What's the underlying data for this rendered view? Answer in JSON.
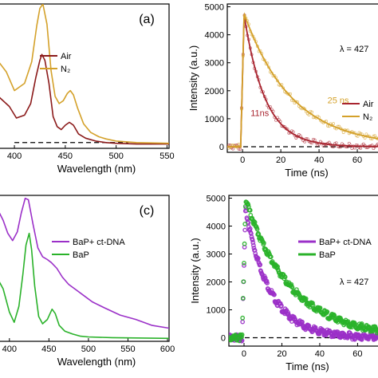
{
  "chart_data": [
    {
      "panel": "(a)",
      "type": "line",
      "xlabel": "Wavelength (nm)",
      "ylabel": "",
      "xlim": [
        378,
        552
      ],
      "ylim": [
        0,
        1.0
      ],
      "x_ticks": [
        "400",
        "450",
        "500",
        "550"
      ],
      "legend": {
        "position": "top-center",
        "entries": [
          "Air",
          "N₂"
        ]
      },
      "reference_line": {
        "style": "dashed",
        "y": 0.04,
        "x_range": [
          400,
          512
        ]
      },
      "series": [
        {
          "name": "Air",
          "color": "#8b1a1a",
          "points": [
            [
              378,
              0.4
            ],
            [
              395,
              0.29
            ],
            [
              402,
              0.21
            ],
            [
              410,
              0.23
            ],
            [
              416,
              0.31
            ],
            [
              421,
              0.49
            ],
            [
              425,
              0.61
            ],
            [
              427,
              0.65
            ],
            [
              430,
              0.61
            ],
            [
              434,
              0.45
            ],
            [
              438,
              0.22
            ],
            [
              442,
              0.15
            ],
            [
              446,
              0.13
            ],
            [
              450,
              0.16
            ],
            [
              454,
              0.18
            ],
            [
              458,
              0.16
            ],
            [
              463,
              0.1
            ],
            [
              470,
              0.07
            ],
            [
              480,
              0.05
            ],
            [
              490,
              0.04
            ],
            [
              500,
              0.035
            ],
            [
              520,
              0.03
            ],
            [
              552,
              0.03
            ]
          ]
        },
        {
          "name": "N₂",
          "color": "#d4a12a",
          "points": [
            [
              378,
              0.66
            ],
            [
              392,
              0.53
            ],
            [
              400,
              0.4
            ],
            [
              410,
              0.45
            ],
            [
              417,
              0.6
            ],
            [
              422,
              0.85
            ],
            [
              425,
              0.97
            ],
            [
              428,
              1.0
            ],
            [
              432,
              0.86
            ],
            [
              436,
              0.54
            ],
            [
              440,
              0.36
            ],
            [
              444,
              0.31
            ],
            [
              448,
              0.33
            ],
            [
              452,
              0.38
            ],
            [
              455,
              0.4
            ],
            [
              458,
              0.37
            ],
            [
              462,
              0.28
            ],
            [
              468,
              0.17
            ],
            [
              475,
              0.11
            ],
            [
              483,
              0.08
            ],
            [
              490,
              0.065
            ],
            [
              500,
              0.05
            ],
            [
              520,
              0.04
            ],
            [
              552,
              0.035
            ]
          ]
        }
      ]
    },
    {
      "type": "scatter",
      "panel": "",
      "xlabel": "Time (ns)",
      "ylabel": "Intensity (a.u.)",
      "xlim": [
        -8,
        75
      ],
      "ylim": [
        -200,
        5100
      ],
      "x_ticks": [
        "0",
        "20",
        "40",
        "60"
      ],
      "y_ticks": [
        "0",
        "1000",
        "2000",
        "3000",
        "4000",
        "5000"
      ],
      "annotation": "λ = 427",
      "legend": {
        "position": "right",
        "entries": [
          "Air",
          "N₂"
        ]
      },
      "lifetime_labels": [
        {
          "series": "Air",
          "text": "11ns",
          "at": [
            9,
            1100
          ]
        },
        {
          "series": "N₂",
          "text": "25 ns",
          "at": [
            50,
            1550
          ]
        }
      ],
      "decay": {
        "onset_ns": -1,
        "peak_ns": 0.8
      },
      "series": [
        {
          "name": "Air",
          "color": "#a8242f",
          "peak": 4700,
          "tau_ns": 11
        },
        {
          "name": "N₂",
          "color": "#d4a12a",
          "peak": 4750,
          "tau_ns": 25
        }
      ],
      "baseline": {
        "style": "dashed",
        "y": 0
      }
    },
    {
      "panel": "(c)",
      "type": "line",
      "xlabel": "Wavelength (nm)",
      "ylabel": "",
      "xlim": [
        378,
        602
      ],
      "ylim": [
        0,
        1.0
      ],
      "x_ticks": [
        "400",
        "450",
        "500",
        "550",
        "600"
      ],
      "legend": {
        "position": "right",
        "entries": [
          "BaP+ ct-DNA",
          "BaP"
        ]
      },
      "series": [
        {
          "name": "BaP+ ct-DNA",
          "color": "#9b30c8",
          "points": [
            [
              378,
              0.98
            ],
            [
              392,
              0.83
            ],
            [
              398,
              0.74
            ],
            [
              404,
              0.69
            ],
            [
              410,
              0.75
            ],
            [
              415,
              0.88
            ],
            [
              420,
              0.98
            ],
            [
              424,
              0.97
            ],
            [
              430,
              0.8
            ],
            [
              436,
              0.64
            ],
            [
              442,
              0.58
            ],
            [
              448,
              0.56
            ],
            [
              453,
              0.54
            ],
            [
              460,
              0.5
            ],
            [
              467,
              0.44
            ],
            [
              475,
              0.39
            ],
            [
              485,
              0.35
            ],
            [
              495,
              0.31
            ],
            [
              505,
              0.27
            ],
            [
              520,
              0.23
            ],
            [
              540,
              0.18
            ],
            [
              560,
              0.15
            ],
            [
              580,
              0.11
            ],
            [
              602,
              0.09
            ]
          ]
        },
        {
          "name": "BaP",
          "color": "#2ab22a",
          "points": [
            [
              378,
              0.5
            ],
            [
              392,
              0.36
            ],
            [
              400,
              0.2
            ],
            [
              406,
              0.13
            ],
            [
              412,
              0.24
            ],
            [
              417,
              0.46
            ],
            [
              421,
              0.66
            ],
            [
              425,
              0.74
            ],
            [
              428,
              0.63
            ],
            [
              432,
              0.38
            ],
            [
              437,
              0.17
            ],
            [
              442,
              0.12
            ],
            [
              448,
              0.15
            ],
            [
              454,
              0.22
            ],
            [
              458,
              0.19
            ],
            [
              463,
              0.11
            ],
            [
              470,
              0.07
            ],
            [
              480,
              0.05
            ],
            [
              490,
              0.035
            ],
            [
              500,
              0.03
            ],
            [
              530,
              0.025
            ],
            [
              602,
              0.02
            ]
          ]
        }
      ]
    },
    {
      "type": "scatter",
      "panel": "",
      "xlabel": "Time (ns)",
      "ylabel": "Intensity (a.u.)",
      "xlim": [
        -8,
        75
      ],
      "ylim": [
        -300,
        5100
      ],
      "x_ticks": [
        "0",
        "20",
        "40",
        "60"
      ],
      "y_ticks": [
        "0",
        "1000",
        "2000",
        "3000",
        "4000",
        "5000"
      ],
      "annotation": "λ = 427",
      "legend": {
        "position": "right",
        "entries": [
          "BaP+ ct-DNA",
          "BaP"
        ]
      },
      "decay": {
        "onset_ns": -1,
        "peak_ns": 0.8
      },
      "series": [
        {
          "name": "BaP+ ct-DNA",
          "color": "#9b30c8",
          "peak": 4600,
          "tau_ns": 13
        },
        {
          "name": "BaP",
          "color": "#2ab22a",
          "peak": 4950,
          "tau_ns": 24
        }
      ],
      "baseline": {
        "style": "dashed",
        "y": 0
      }
    }
  ]
}
